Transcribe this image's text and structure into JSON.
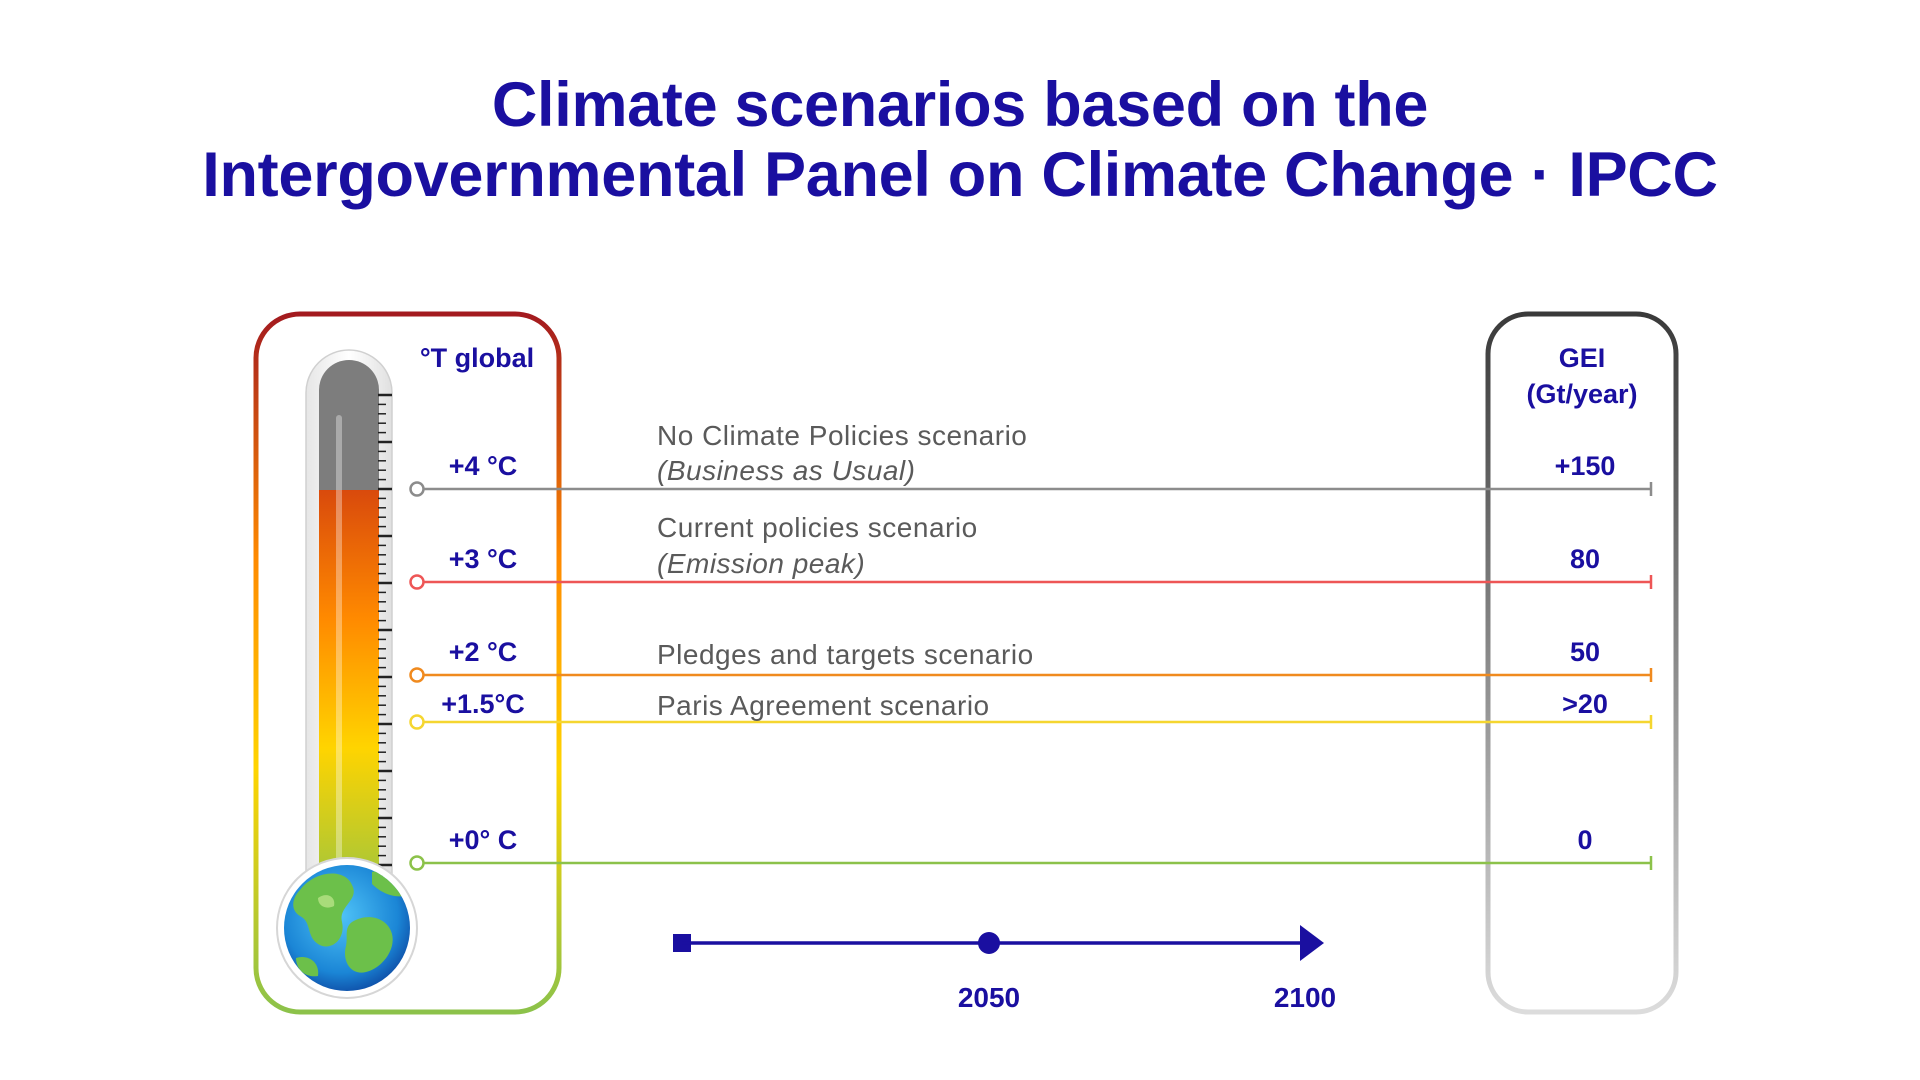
{
  "title": {
    "line1": "Climate scenarios based on the",
    "line2": "Intergovernmental Panel on Climate Change · IPCC"
  },
  "temperature_axis": {
    "label": "°T global"
  },
  "gei_axis": {
    "label_line1": "GEI",
    "label_line2": "(Gt/year)"
  },
  "scenarios": [
    {
      "temp_label": "+4 °C",
      "gei": "+150",
      "name": "No Climate Policies scenario",
      "subtitle": "(Business as Usual)",
      "color": "#8c8c8c"
    },
    {
      "temp_label": "+3 °C",
      "gei": "80",
      "name": "Current policies scenario",
      "subtitle": "(Emission peak)",
      "color": "#ee5656"
    },
    {
      "temp_label": "+2 °C",
      "gei": "50",
      "name": "Pledges and targets scenario",
      "subtitle": "",
      "color": "#f08a1e"
    },
    {
      "temp_label": "+1.5°C",
      "gei": ">20",
      "name": "Paris Agreement scenario",
      "subtitle": "",
      "color": "#f5d630"
    },
    {
      "temp_label": "+0° C",
      "gei": "0",
      "name": "",
      "subtitle": "",
      "color": "#8cc24a"
    }
  ],
  "timeline": {
    "years": [
      "2050",
      "2100"
    ]
  },
  "colors": {
    "title": "#1a0fa0",
    "thermo_frame_top": "#a31a1f",
    "thermo_frame_mid": "#ff8a00",
    "thermo_frame_low": "#ffd400",
    "thermo_frame_bottom": "#8cc24a",
    "gei_frame_top": "#3a3a3a",
    "gei_frame_bottom": "#d9d9d9",
    "timeline": "#1a0fa0"
  },
  "icons": {
    "globe": "earth-globe-icon"
  }
}
